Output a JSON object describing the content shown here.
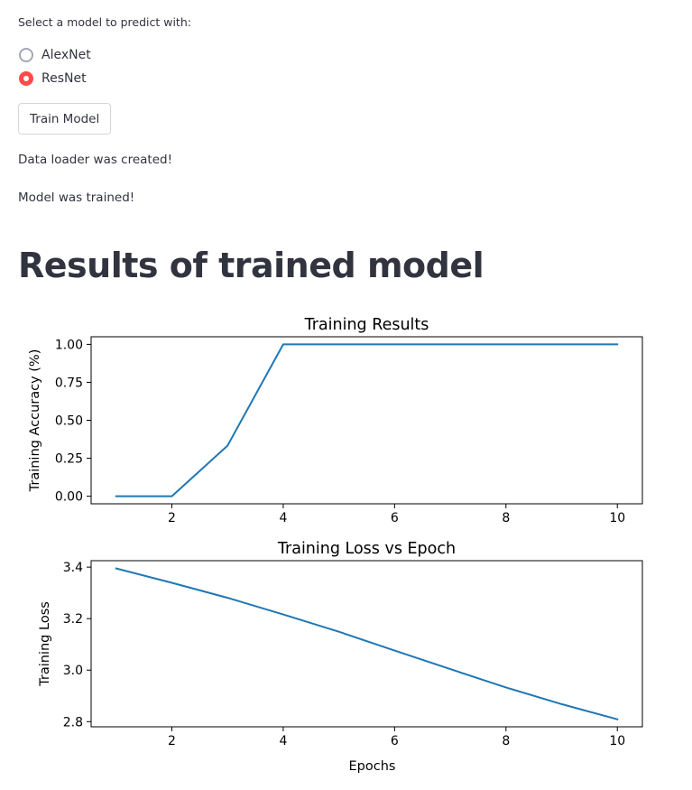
{
  "model_select": {
    "label": "Select a model to predict with:",
    "options": [
      "AlexNet",
      "ResNet"
    ],
    "selected": "ResNet"
  },
  "train_button": {
    "label": "Train Model"
  },
  "status": {
    "data_loader": "Data loader was created!",
    "model_trained": "Model was trained!"
  },
  "results": {
    "heading": "Results of trained model"
  },
  "colors": {
    "accent": "#ff4b4b",
    "line": "#1f77b4",
    "text": "#31333f"
  },
  "chart_data": [
    {
      "type": "line",
      "title": "Training Results",
      "xlabel": "",
      "ylabel": "Training Accuracy (%)",
      "x": [
        1,
        2,
        3,
        4,
        5,
        6,
        7,
        8,
        9,
        10
      ],
      "series": [
        {
          "values": [
            0.0,
            0.0,
            0.333,
            1.0,
            1.0,
            1.0,
            1.0,
            1.0,
            1.0,
            1.0
          ]
        }
      ],
      "xlim": [
        0.55,
        10.45
      ],
      "ylim": [
        -0.05,
        1.05
      ],
      "xticks": [
        2,
        4,
        6,
        8,
        10
      ],
      "yticks": [
        0.0,
        0.25,
        0.5,
        0.75,
        1.0
      ],
      "xtick_labels": [
        "2",
        "4",
        "6",
        "8",
        "10"
      ],
      "ytick_labels": [
        "0.00",
        "0.25",
        "0.50",
        "0.75",
        "1.00"
      ],
      "grid": false
    },
    {
      "type": "line",
      "title": "Training Loss vs Epoch",
      "xlabel": "Epochs",
      "ylabel": "Training Loss",
      "x": [
        1,
        2,
        3,
        4,
        5,
        6,
        7,
        8,
        9,
        10
      ],
      "series": [
        {
          "values": [
            3.395,
            3.339,
            3.281,
            3.216,
            3.149,
            3.076,
            3.004,
            2.933,
            2.868,
            2.809
          ]
        }
      ],
      "xlim": [
        0.55,
        10.45
      ],
      "ylim": [
        2.78,
        3.425
      ],
      "xticks": [
        2,
        4,
        6,
        8,
        10
      ],
      "yticks": [
        2.8,
        3.0,
        3.2,
        3.4
      ],
      "xtick_labels": [
        "2",
        "4",
        "6",
        "8",
        "10"
      ],
      "ytick_labels": [
        "2.8",
        "3.0",
        "3.2",
        "3.4"
      ],
      "grid": false
    }
  ]
}
